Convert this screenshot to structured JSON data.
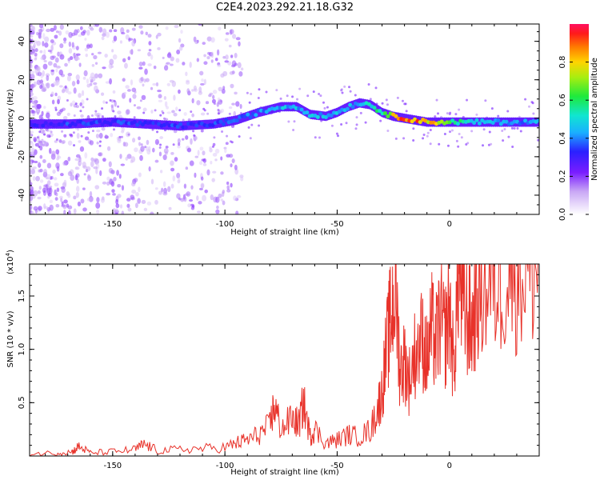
{
  "page": {
    "title": "C2E4.2023.292.21.18.G32"
  },
  "chart_data": [
    {
      "type": "heatmap",
      "title": "C2E4.2023.292.21.18.G32",
      "xlabel": "Height of straight line (km)",
      "ylabel": "Frequency (Hz)",
      "xlim": [
        -187,
        40
      ],
      "ylim": [
        -50,
        49
      ],
      "x_ticks": [
        -150,
        -100,
        -50,
        0
      ],
      "x_tick_labels": [
        "-150",
        "-100",
        "-50",
        "0"
      ],
      "y_ticks": [
        -40,
        -20,
        0,
        20,
        40
      ],
      "y_tick_labels": [
        "-40",
        "-20",
        "0",
        "20",
        "40"
      ],
      "colorbar": {
        "label": "Normalized spectral amplitude",
        "range": [
          0,
          1
        ],
        "ticks": [
          0.0,
          0.2,
          0.4,
          0.6,
          0.8
        ],
        "tick_labels": [
          "0.0",
          "0.2",
          "0.4",
          "0.6",
          "0.8"
        ]
      },
      "ridge": {
        "x": [
          -185,
          -170,
          -150,
          -135,
          -120,
          -105,
          -95,
          -85,
          -75,
          -68,
          -62,
          -55,
          -50,
          -45,
          -40,
          -35,
          -30,
          -25,
          -20,
          -15,
          -10,
          -5,
          0,
          10,
          20,
          30,
          40
        ],
        "freq": [
          -3,
          -3,
          -2,
          -3,
          -4,
          -3,
          -1,
          3,
          6,
          6,
          2,
          1,
          3,
          6,
          8,
          7,
          3,
          1,
          0,
          -1,
          -2,
          -2,
          -2,
          -2,
          -2,
          -2,
          -2
        ],
        "amplitude": [
          0.3,
          0.35,
          0.35,
          0.35,
          0.35,
          0.35,
          0.4,
          0.4,
          0.45,
          0.45,
          0.45,
          0.45,
          0.45,
          0.45,
          0.45,
          0.5,
          0.6,
          0.8,
          0.95,
          0.9,
          0.85,
          0.75,
          0.6,
          0.5,
          0.45,
          0.4,
          0.45
        ]
      }
    },
    {
      "type": "line",
      "xlabel": "Height of straight line (km)",
      "ylabel": "SNR (10 * v/v)",
      "scale_label": "(x10",
      "scale_exp": "4",
      "scale_close": ")",
      "xlim": [
        -187,
        40
      ],
      "ylim": [
        0,
        18000
      ],
      "x_ticks": [
        -150,
        -100,
        -50,
        0
      ],
      "x_tick_labels": [
        "-150",
        "-100",
        "-50",
        "0"
      ],
      "y_ticks": [
        5000,
        10000,
        15000
      ],
      "y_tick_labels": [
        "0.5",
        "1.0",
        "1.5"
      ],
      "line_color": "#e8322a",
      "series": [
        {
          "x": [
            -187,
            -175,
            -168,
            -165,
            -160,
            -150,
            -140,
            -136,
            -130,
            -120,
            -110,
            -100,
            -95,
            -90,
            -85,
            -80,
            -78,
            -75,
            -70,
            -67,
            -65,
            -62,
            -60,
            -55,
            -50,
            -45,
            -40,
            -35,
            -32,
            -30,
            -28,
            -26,
            -24,
            -22,
            -20,
            -18,
            -15,
            -12,
            -10,
            -8,
            -6,
            -4,
            -2,
            0,
            2,
            4,
            6,
            8,
            10,
            12,
            15,
            20,
            25,
            30,
            35,
            40
          ],
          "y": [
            200,
            300,
            400,
            900,
            300,
            400,
            600,
            1100,
            500,
            600,
            700,
            800,
            1200,
            1500,
            2000,
            2800,
            4800,
            2500,
            3500,
            3000,
            5000,
            1800,
            2500,
            1200,
            1500,
            2000,
            1800,
            2500,
            4500,
            6000,
            10000,
            13000,
            16000,
            8000,
            9000,
            7000,
            10000,
            11000,
            9000,
            12000,
            10500,
            13000,
            11000,
            14000,
            8000,
            18000,
            14000,
            13000,
            12000,
            15000,
            15500,
            16000,
            17000,
            17200,
            17500,
            17800
          ]
        }
      ]
    }
  ],
  "colors": {
    "background": "#ffffff",
    "frame": "#000000",
    "line": "#e8322a"
  }
}
